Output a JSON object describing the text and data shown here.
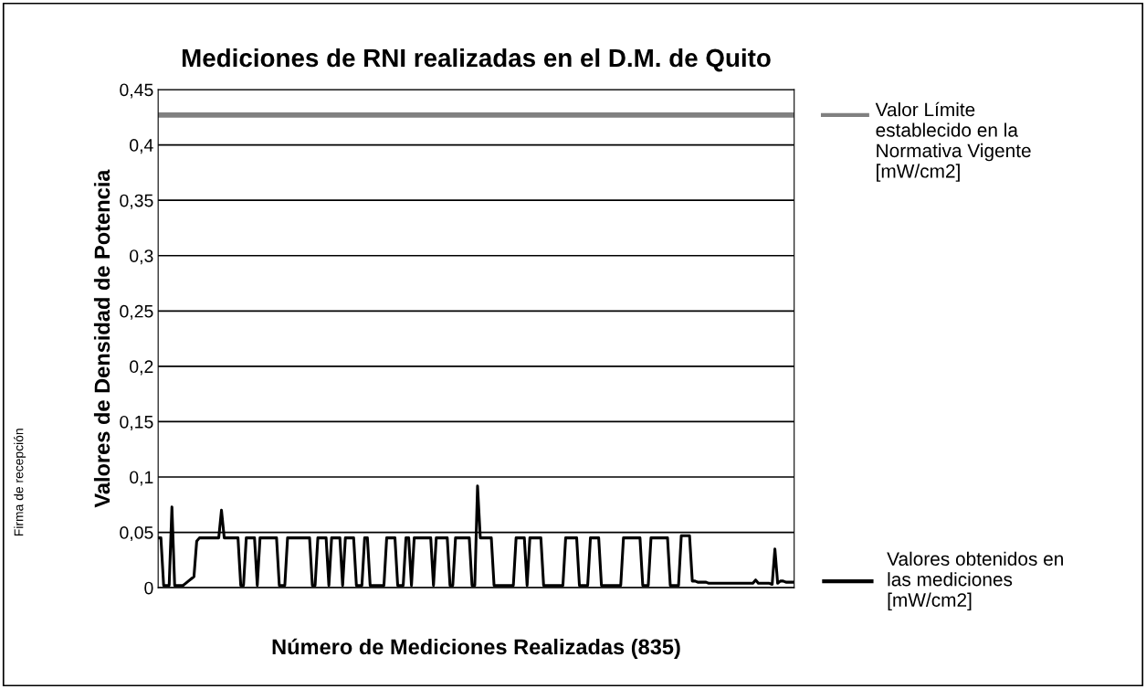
{
  "chart_data": {
    "type": "line",
    "title": "Mediciones de RNI realizadas en el D.M. de Quito",
    "xlabel": "Número de Mediciones Realizadas (835)",
    "ylabel": "Valores de Densidad de Potencia",
    "ylim": [
      0,
      0.45
    ],
    "yticks": [
      0,
      {
        "value": 0.05,
        "label": "0,05"
      },
      {
        "value": 0.1,
        "label": "0,1"
      },
      {
        "value": 0.15,
        "label": "0,15"
      },
      {
        "value": 0.2,
        "label": "0,2"
      },
      {
        "value": 0.25,
        "label": "0,25"
      },
      {
        "value": 0.3,
        "label": "0,3"
      },
      {
        "value": 0.35,
        "label": "0,35"
      },
      {
        "value": 0.4,
        "label": "0,4"
      },
      {
        "value": 0.45,
        "label": "0,45"
      }
    ],
    "tick_labels": "y",
    "grid": "y",
    "legend": "right",
    "categories": [
      null,
      null,
      null,
      null,
      null,
      null,
      null,
      null,
      null,
      null,
      null,
      null,
      null,
      null,
      null,
      null,
      null,
      null,
      null,
      null,
      null,
      null,
      null,
      null,
      null,
      null,
      null,
      null,
      null,
      null,
      null,
      null,
      null,
      null,
      null,
      null,
      null,
      null,
      null,
      null,
      null,
      null,
      null,
      null,
      null,
      null,
      null,
      null,
      null,
      null,
      null,
      null,
      null,
      null,
      null,
      null,
      null,
      null,
      null,
      null,
      null,
      null,
      null,
      null,
      null,
      null,
      null,
      null,
      null,
      null,
      null,
      null,
      null,
      null,
      null,
      null,
      null,
      null,
      null,
      null,
      null,
      null,
      null,
      null,
      null,
      null,
      null,
      null,
      null,
      null,
      null,
      null,
      null,
      null,
      null,
      null,
      null,
      null,
      null,
      null,
      null,
      null,
      null,
      null,
      null,
      null,
      null,
      null,
      null,
      null,
      null,
      null,
      null,
      null,
      null,
      null,
      null,
      null,
      null,
      null,
      null,
      null,
      null,
      null,
      null,
      null,
      null,
      null,
      null,
      null,
      null,
      null,
      null,
      null,
      null,
      null,
      null,
      null,
      null,
      null,
      null,
      null,
      null,
      null,
      null,
      null,
      null,
      null,
      null,
      null,
      null,
      null,
      null,
      null,
      null,
      null,
      null,
      null,
      null,
      null,
      null,
      null,
      null,
      null,
      null,
      null,
      null,
      null,
      null,
      null,
      null,
      null,
      null,
      null,
      null,
      null,
      null,
      null,
      null,
      null,
      null,
      null,
      null,
      null,
      null,
      null,
      null,
      null,
      null,
      null,
      null,
      null,
      null,
      null,
      null,
      null,
      null,
      null,
      null,
      null,
      null,
      null,
      null,
      null,
      null,
      null,
      null,
      null,
      null,
      null,
      null,
      null,
      null,
      null,
      null,
      null,
      null,
      null,
      null,
      null,
      null,
      null,
      null,
      null,
      null,
      null,
      null,
      null,
      null,
      null,
      null,
      null
    ],
    "series": [
      {
        "name": "Valores obtenidos en las mediciones [mW/cm2]",
        "color": "#000000",
        "values": [
          0.045,
          0.045,
          0.002,
          0.002,
          0.002,
          0.073,
          0.002,
          0.002,
          0.002,
          0.002,
          0.004,
          0.006,
          0.008,
          0.01,
          0.042,
          0.045,
          0.045,
          0.045,
          0.045,
          0.045,
          0.045,
          0.045,
          0.045,
          0.07,
          0.045,
          0.045,
          0.045,
          0.045,
          0.045,
          0.045,
          0.002,
          0.002,
          0.045,
          0.045,
          0.045,
          0.045,
          0.002,
          0.045,
          0.045,
          0.045,
          0.045,
          0.045,
          0.045,
          0.045,
          0.002,
          0.002,
          0.002,
          0.045,
          0.045,
          0.045,
          0.045,
          0.045,
          0.045,
          0.045,
          0.045,
          0.045,
          0.002,
          0.002,
          0.045,
          0.045,
          0.045,
          0.045,
          0.002,
          0.045,
          0.045,
          0.045,
          0.045,
          0.002,
          0.045,
          0.045,
          0.045,
          0.045,
          0.002,
          0.002,
          0.002,
          0.045,
          0.045,
          0.002,
          0.002,
          0.002,
          0.002,
          0.002,
          0.002,
          0.045,
          0.045,
          0.045,
          0.045,
          0.002,
          0.002,
          0.002,
          0.045,
          0.045,
          0.002,
          0.045,
          0.045,
          0.045,
          0.045,
          0.045,
          0.045,
          0.045,
          0.002,
          0.045,
          0.045,
          0.045,
          0.045,
          0.045,
          0.002,
          0.002,
          0.045,
          0.045,
          0.045,
          0.045,
          0.045,
          0.045,
          0.002,
          0.002,
          0.092,
          0.045,
          0.045,
          0.045,
          0.045,
          0.045,
          0.002,
          0.002,
          0.002,
          0.002,
          0.002,
          0.002,
          0.002,
          0.002,
          0.045,
          0.045,
          0.045,
          0.045,
          0.002,
          0.045,
          0.045,
          0.045,
          0.045,
          0.045,
          0.002,
          0.002,
          0.002,
          0.002,
          0.002,
          0.002,
          0.002,
          0.002,
          0.045,
          0.045,
          0.045,
          0.045,
          0.045,
          0.002,
          0.002,
          0.002,
          0.002,
          0.045,
          0.045,
          0.045,
          0.045,
          0.002,
          0.002,
          0.002,
          0.002,
          0.002,
          0.002,
          0.002,
          0.002,
          0.045,
          0.045,
          0.045,
          0.045,
          0.045,
          0.045,
          0.045,
          0.002,
          0.002,
          0.002,
          0.045,
          0.045,
          0.045,
          0.045,
          0.045,
          0.045,
          0.045,
          0.002,
          0.002,
          0.002,
          0.002,
          0.047,
          0.047,
          0.047,
          0.047,
          0.006,
          0.006,
          0.005,
          0.005,
          0.005,
          0.005,
          0.004,
          0.004,
          0.004,
          0.004,
          0.004,
          0.004,
          0.004,
          0.004,
          0.004,
          0.004,
          0.004,
          0.004,
          0.004,
          0.004,
          0.004,
          0.004,
          0.004,
          0.007,
          0.004,
          0.004,
          0.004,
          0.004,
          0.004,
          0.003,
          0.035,
          0.004,
          0.006,
          0.006,
          0.005,
          0.005,
          0.005,
          0.005
        ]
      }
    ],
    "ref_lines": [
      {
        "axis": "y",
        "value": 0.427,
        "label": "Valor Límite establecido en la Normativa Vigente [mW/cm2]",
        "color": "#808080"
      }
    ],
    "annotations": [
      "Firma de recepción"
    ]
  }
}
